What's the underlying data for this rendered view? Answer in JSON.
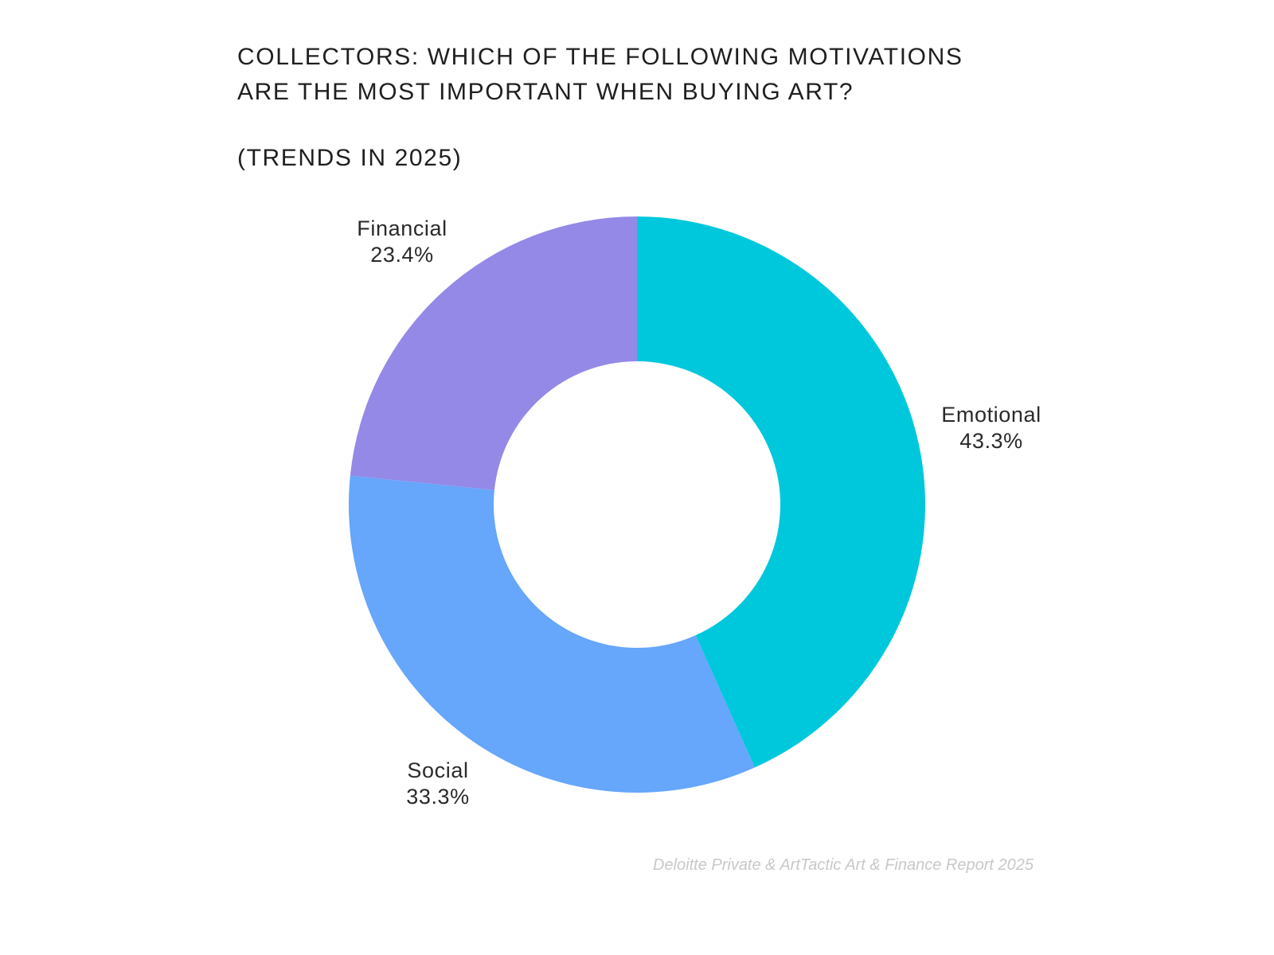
{
  "chart_data": {
    "type": "pie",
    "style": "donut",
    "title_lines": [
      "COLLECTORS: WHICH OF THE FOLLOWING MOTIVATIONS",
      "ARE THE MOST IMPORTANT WHEN BUYING ART?"
    ],
    "subtitle": "(TRENDS IN 2025)",
    "slices": [
      {
        "label": "Emotional",
        "value": 43.3,
        "value_label": "43.3%",
        "color": "#00C8DC"
      },
      {
        "label": "Social",
        "value": 33.3,
        "value_label": "33.3%",
        "color": "#66A6FB"
      },
      {
        "label": "Financial",
        "value": 23.4,
        "value_label": "23.4%",
        "color": "#9489E6"
      }
    ],
    "legend": "none",
    "source": "Deloitte Private & ArtTactic Art & Finance Report 2025"
  }
}
